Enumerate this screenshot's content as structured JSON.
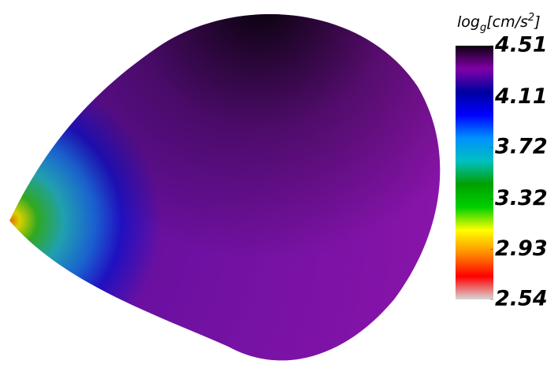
{
  "chart_data": {
    "type": "surface",
    "colorbar": {
      "label": [
        "log",
        "g",
        "[cm/s",
        "2",
        "]"
      ],
      "clim": [
        2.54,
        4.51
      ],
      "ticks": [
        4.51,
        4.11,
        3.72,
        3.32,
        2.93,
        2.54
      ],
      "colormap": [
        "#d8d8d8",
        "#ff0000",
        "#ff8c00",
        "#ffff00",
        "#00d000",
        "#00a000",
        "#00c0c0",
        "#0090ff",
        "#0000ff",
        "#0000a0",
        "#8000a8",
        "#100010"
      ]
    }
  }
}
